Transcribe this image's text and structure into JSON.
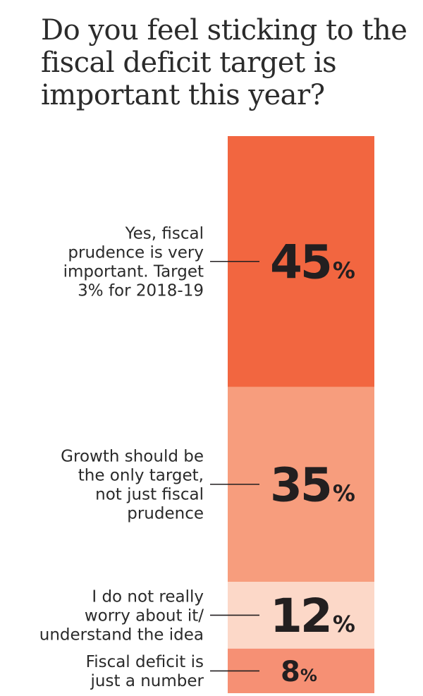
{
  "chart_data": {
    "type": "bar",
    "title": "Do you feel sticking to the fiscal deficit target is important this year?",
    "stacked": true,
    "unit": "%",
    "segments": [
      {
        "label_lines": [
          "Yes, fiscal",
          "prudence is very",
          "important. Target",
          "3% for 2018-19"
        ],
        "value": 45,
        "value_text": "45",
        "color": "#f26640"
      },
      {
        "label_lines": [
          "Growth should be",
          "the only target,",
          "not just fiscal",
          "prudence"
        ],
        "value": 35,
        "value_text": "35",
        "color": "#f79d7d"
      },
      {
        "label_lines": [
          "I do not really",
          "worry about it/",
          "understand the idea"
        ],
        "value": 12,
        "value_text": "12",
        "color": "#fcd8c8"
      },
      {
        "label_lines": [
          "Fiscal deficit is",
          "just a number"
        ],
        "value": 8,
        "value_text": "8",
        "color": "#f69074"
      }
    ]
  }
}
